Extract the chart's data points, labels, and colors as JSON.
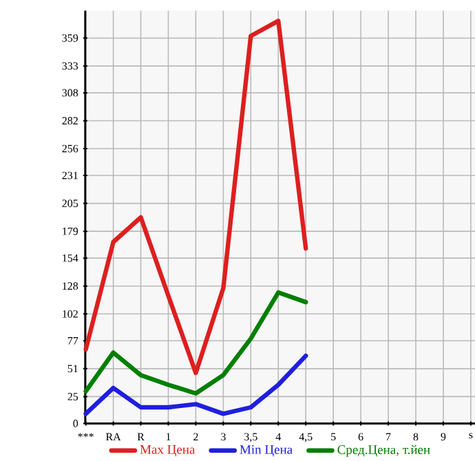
{
  "chart_data": {
    "type": "line",
    "categories": [
      "***",
      "RA",
      "R",
      "1",
      "2",
      "3",
      "3,5",
      "4",
      "4,5",
      "5",
      "6",
      "7",
      "8",
      "9",
      "s"
    ],
    "series": [
      {
        "name": "Max Цена",
        "color": "#dd1f1f",
        "values": [
          69,
          169,
          192,
          119,
          47,
          126,
          361,
          375,
          163,
          null,
          null,
          null,
          null,
          null,
          null
        ]
      },
      {
        "name": "Min Цена",
        "color": "#1f1fdd",
        "values": [
          9,
          33,
          15,
          15,
          18,
          9,
          15,
          36,
          63,
          null,
          null,
          null,
          null,
          null,
          null
        ]
      },
      {
        "name": "Сред.Цена, т.йен",
        "color": "#007f00",
        "values": [
          30,
          66,
          45,
          36,
          28,
          45,
          79,
          122,
          113,
          null,
          null,
          null,
          null,
          null,
          null
        ]
      }
    ],
    "ylim": [
      0,
      384.6
    ],
    "yticks": [
      0,
      25,
      51,
      77,
      102,
      128,
      154,
      179,
      205,
      231,
      256,
      282,
      308,
      333,
      359
    ],
    "grid": true,
    "legend": "bottom",
    "marker": "none",
    "line_style": "solid"
  }
}
